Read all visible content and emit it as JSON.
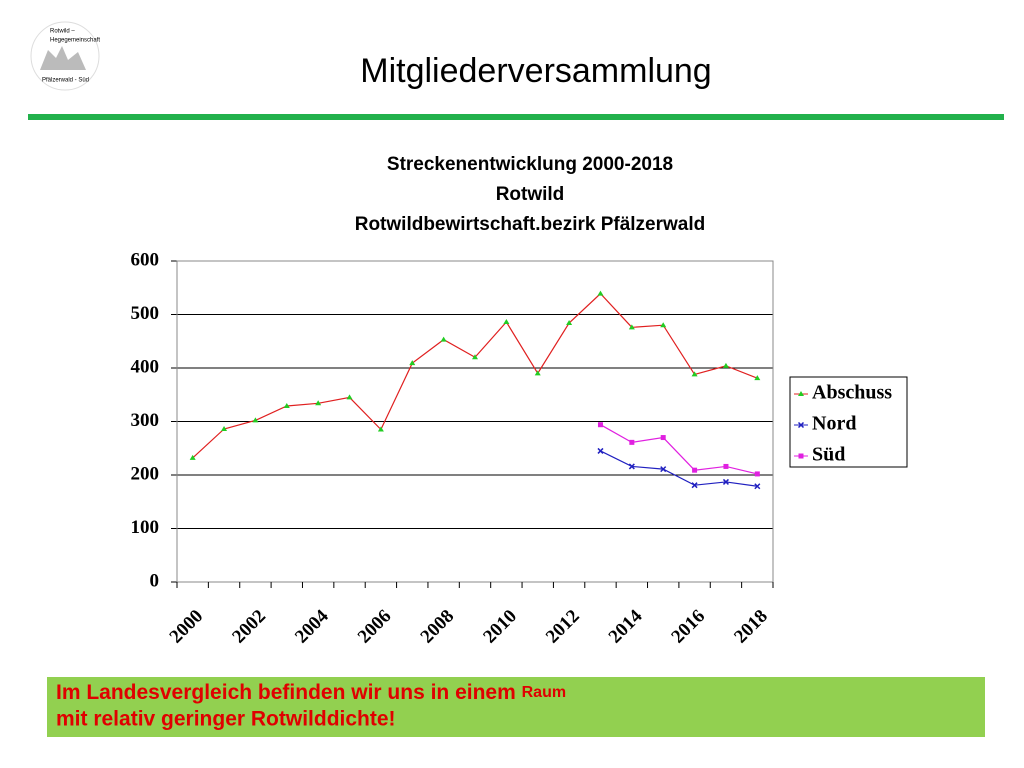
{
  "header": {
    "title": "Mitgliederversammlung",
    "logo": [
      "Rotwild –",
      "Hegegemeinschaft",
      "Pfälzerwald - Süd"
    ]
  },
  "chart_data": {
    "type": "line",
    "title": [
      "Streckenentwicklung 2000-2018",
      "Rotwild",
      "Rotwildbewirtschaft.bezirk Pfälzerwald"
    ],
    "categories": [
      "2000",
      null,
      "2002",
      null,
      "2004",
      null,
      "2006",
      null,
      "2008",
      null,
      "2010",
      null,
      "2012",
      null,
      "2014",
      null,
      "2016",
      null,
      "2018"
    ],
    "series": [
      {
        "name": "Abschuss",
        "color": "#e02020",
        "marker_color": "#22cc22",
        "marker": "triangle",
        "values": [
          232,
          286,
          302,
          329,
          334,
          345,
          285,
          409,
          453,
          420,
          486,
          390,
          484,
          539,
          476,
          480,
          388,
          404,
          381
        ]
      },
      {
        "name": "Nord",
        "color": "#2020c0",
        "marker_color": "#2020c0",
        "marker": "star",
        "values": [
          null,
          null,
          null,
          null,
          null,
          null,
          null,
          null,
          null,
          null,
          null,
          null,
          null,
          245,
          216,
          211,
          181,
          187,
          179
        ]
      },
      {
        "name": "Süd",
        "color": "#e020e0",
        "marker_color": "#e020e0",
        "marker": "square",
        "values": [
          null,
          null,
          null,
          null,
          null,
          null,
          null,
          null,
          null,
          null,
          null,
          null,
          null,
          294,
          261,
          270,
          209,
          216,
          202
        ]
      }
    ],
    "ylim": [
      0,
      600
    ],
    "yticks": [
      0,
      100,
      200,
      300,
      400,
      500,
      600
    ],
    "grid": true,
    "legend": "right"
  },
  "footer": {
    "text": [
      "Im Landesvergleich befinden wir uns in einem ",
      "Raum",
      " mit relativ geringer Rotwilddichte!"
    ]
  }
}
